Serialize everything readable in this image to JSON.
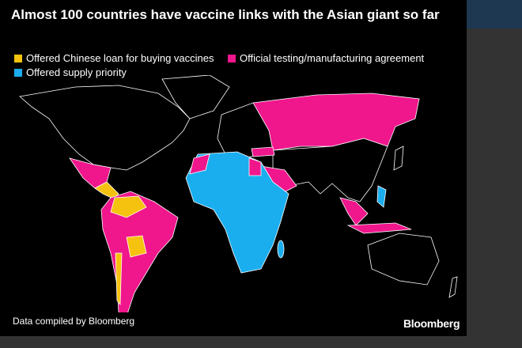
{
  "header": {
    "title": "Almost 100 countries have vaccine links with the Asian giant so far"
  },
  "legend": [
    {
      "label": "Offered Chinese loan for buying vaccines",
      "color": "#f5c20f"
    },
    {
      "label": "Official testing/manufacturing agreement",
      "color": "#f0168c"
    },
    {
      "label": "Offered supply priority",
      "color": "#1aaeee"
    }
  ],
  "footer": {
    "source": "Data compiled by Bloomberg",
    "brand": "Bloomberg"
  }
}
